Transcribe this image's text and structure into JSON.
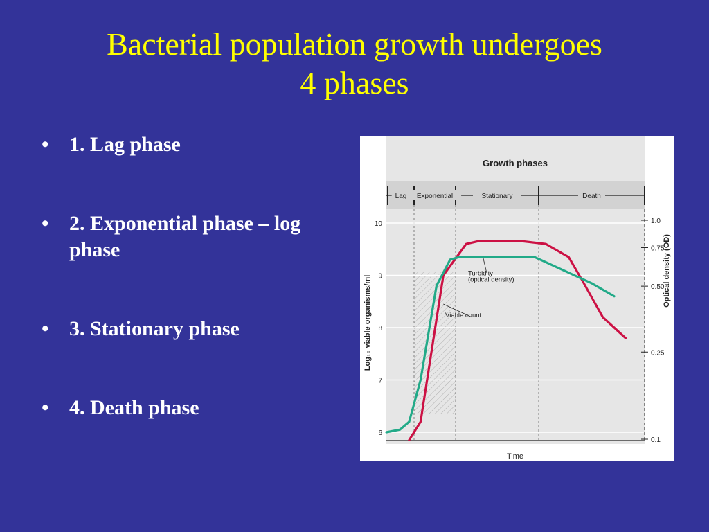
{
  "slide": {
    "title_line1": "Bacterial population growth undergoes",
    "title_line2": "4 phases",
    "bullet_char": "•",
    "bullets": [
      "1. Lag phase",
      "2. Exponential phase – log phase",
      "3. Stationary phase",
      "4. Death phase"
    ]
  },
  "chart_data": {
    "type": "line",
    "title": "Growth phases",
    "phases": [
      "Lag",
      "Exponential",
      "Stationary",
      "Death"
    ],
    "xlabel": "Time",
    "ylabel_left": "Log₁₀ viable organisms/ml",
    "ylabel_right": "Optical density (OD)",
    "y_left_ticks": [
      "10",
      "9",
      "8",
      "7",
      "6"
    ],
    "y_left_range": [
      6,
      10
    ],
    "y_right_ticks": [
      "1.0",
      "0.75",
      "0.50",
      "0.25",
      "0.1"
    ],
    "y_right_scale": "log",
    "grid": true,
    "series": [
      {
        "name": "Viable count",
        "color": "#cc1144",
        "axis": "left",
        "x": [
          1.0,
          1.5,
          2.5,
          3.5,
          4.0,
          4.5,
          5.0,
          5.5,
          6.0,
          7.0,
          8.0,
          8.6,
          9.5,
          10.5
        ],
        "y": [
          5.85,
          6.2,
          9.0,
          9.6,
          9.65,
          9.65,
          9.66,
          9.65,
          9.65,
          9.6,
          9.35,
          8.9,
          8.2,
          7.8
        ]
      },
      {
        "name": "Turbidity (optical density)",
        "color": "#22aa88",
        "axis": "left",
        "x": [
          0,
          0.6,
          1.0,
          1.5,
          2.2,
          2.8,
          3.2,
          3.7,
          4.5,
          5.5,
          6.5,
          7.0,
          8.0,
          9.0,
          10.0
        ],
        "y": [
          6.0,
          6.05,
          6.2,
          7.0,
          8.8,
          9.3,
          9.35,
          9.35,
          9.35,
          9.35,
          9.35,
          9.25,
          9.05,
          8.85,
          8.6
        ]
      }
    ],
    "annotations": [
      {
        "text": "Turbidity",
        "x": 4.8,
        "y": 9.0
      },
      {
        "text": "(optical density)",
        "x": 4.8,
        "y": 8.88
      },
      {
        "text": "Viable count",
        "x": 3.8,
        "y": 8.2
      }
    ]
  }
}
